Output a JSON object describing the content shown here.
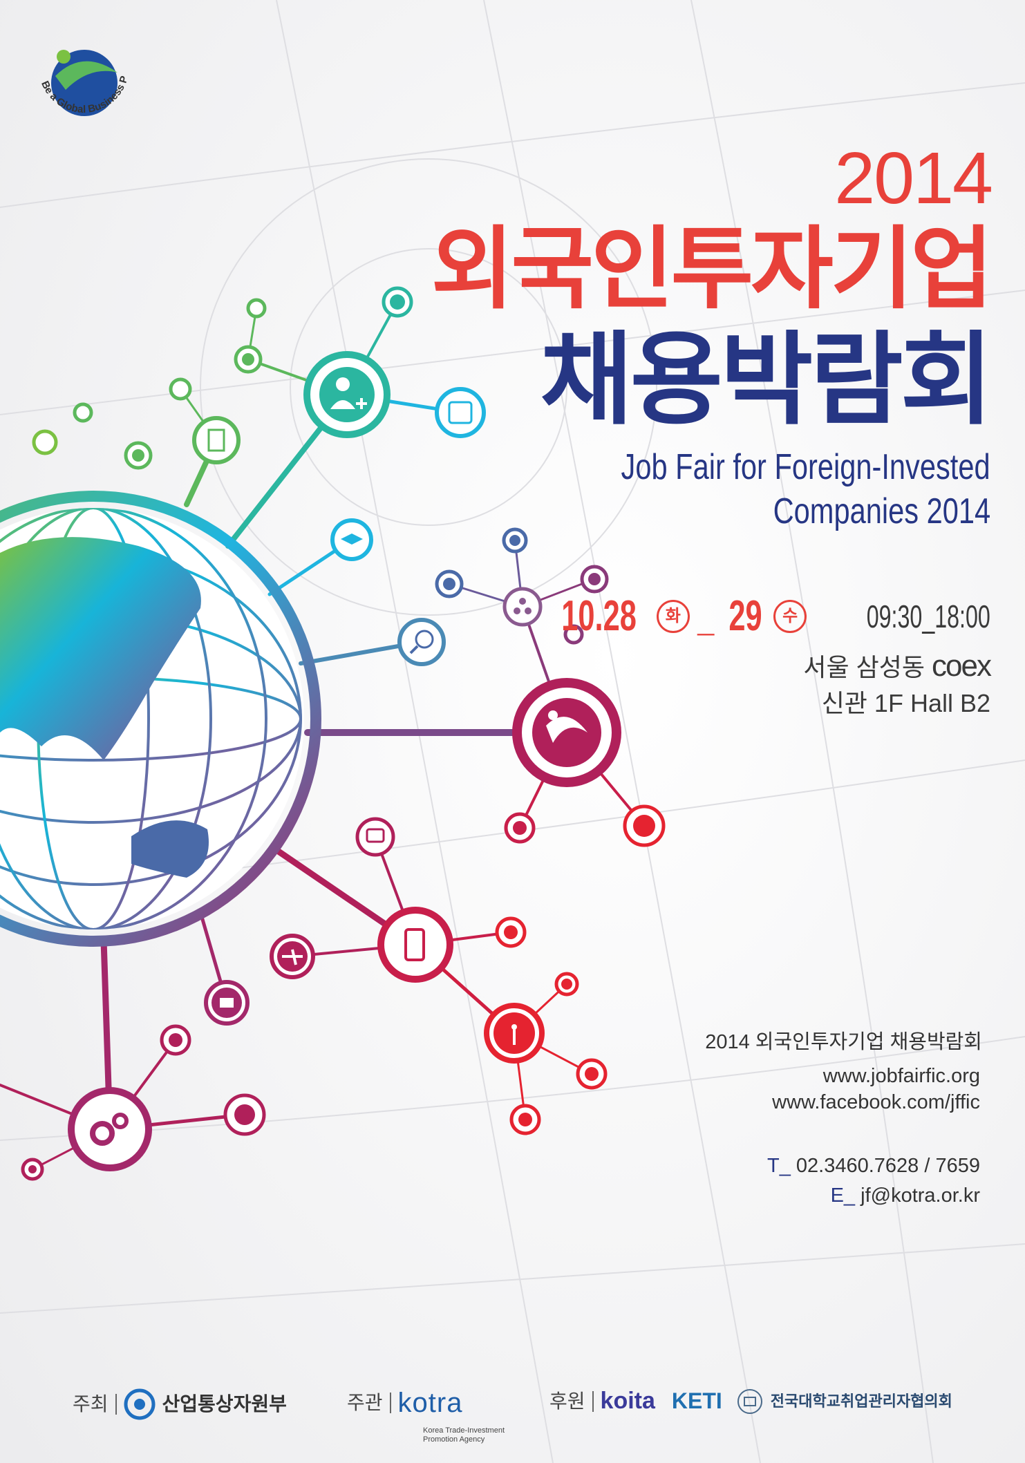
{
  "logo": {
    "tagline": "Be a Global Business Pioneer!"
  },
  "header": {
    "year": "2014",
    "title_line1": "외국인투자기업",
    "title_line2": "채용박람회",
    "english_line1": "Job Fair for Foreign-Invested",
    "english_line2": "Companies 2014"
  },
  "event": {
    "date_start": "10.28",
    "day_start": "화",
    "separator": "_",
    "date_end": "29",
    "day_end": "수",
    "time": "09:30_18:00",
    "venue_city": "서울 삼성동",
    "venue_logo": "coex",
    "venue_hall": "신관 1F Hall B2"
  },
  "contact": {
    "event_name": "2014 외국인투자기업 채용박람회",
    "website": "www.jobfairfic.org",
    "facebook": "www.facebook.com/jffic",
    "phone_label": "T_",
    "phone": "02.3460.7628 / 7659",
    "email_label": "E_",
    "email": "jf@kotra.or.kr"
  },
  "footer": {
    "host_label": "주최",
    "host": "산업통상자원부",
    "organizer_label": "주관",
    "organizer": "kotra",
    "organizer_sub1": "Korea Trade-Investment",
    "organizer_sub2": "Promotion Agency",
    "sponsor_label": "후원",
    "sponsor1": "koita",
    "sponsor2": "KETI",
    "sponsor3": "전국대학교취업관리자협의회"
  },
  "colors": {
    "red": "#e8413a",
    "navy": "#263684",
    "teal": "#2bb6a0",
    "cyan": "#1fb5e0",
    "magenta": "#b0205a"
  },
  "icons": [
    "person-plus-icon",
    "wifi-icon",
    "notebook-icon",
    "graduation-cap-icon",
    "search-globe-icon",
    "molecule-icon",
    "chat-icon",
    "smartphone-icon",
    "airplane-icon",
    "books-icon",
    "antenna-icon",
    "gears-icon"
  ]
}
